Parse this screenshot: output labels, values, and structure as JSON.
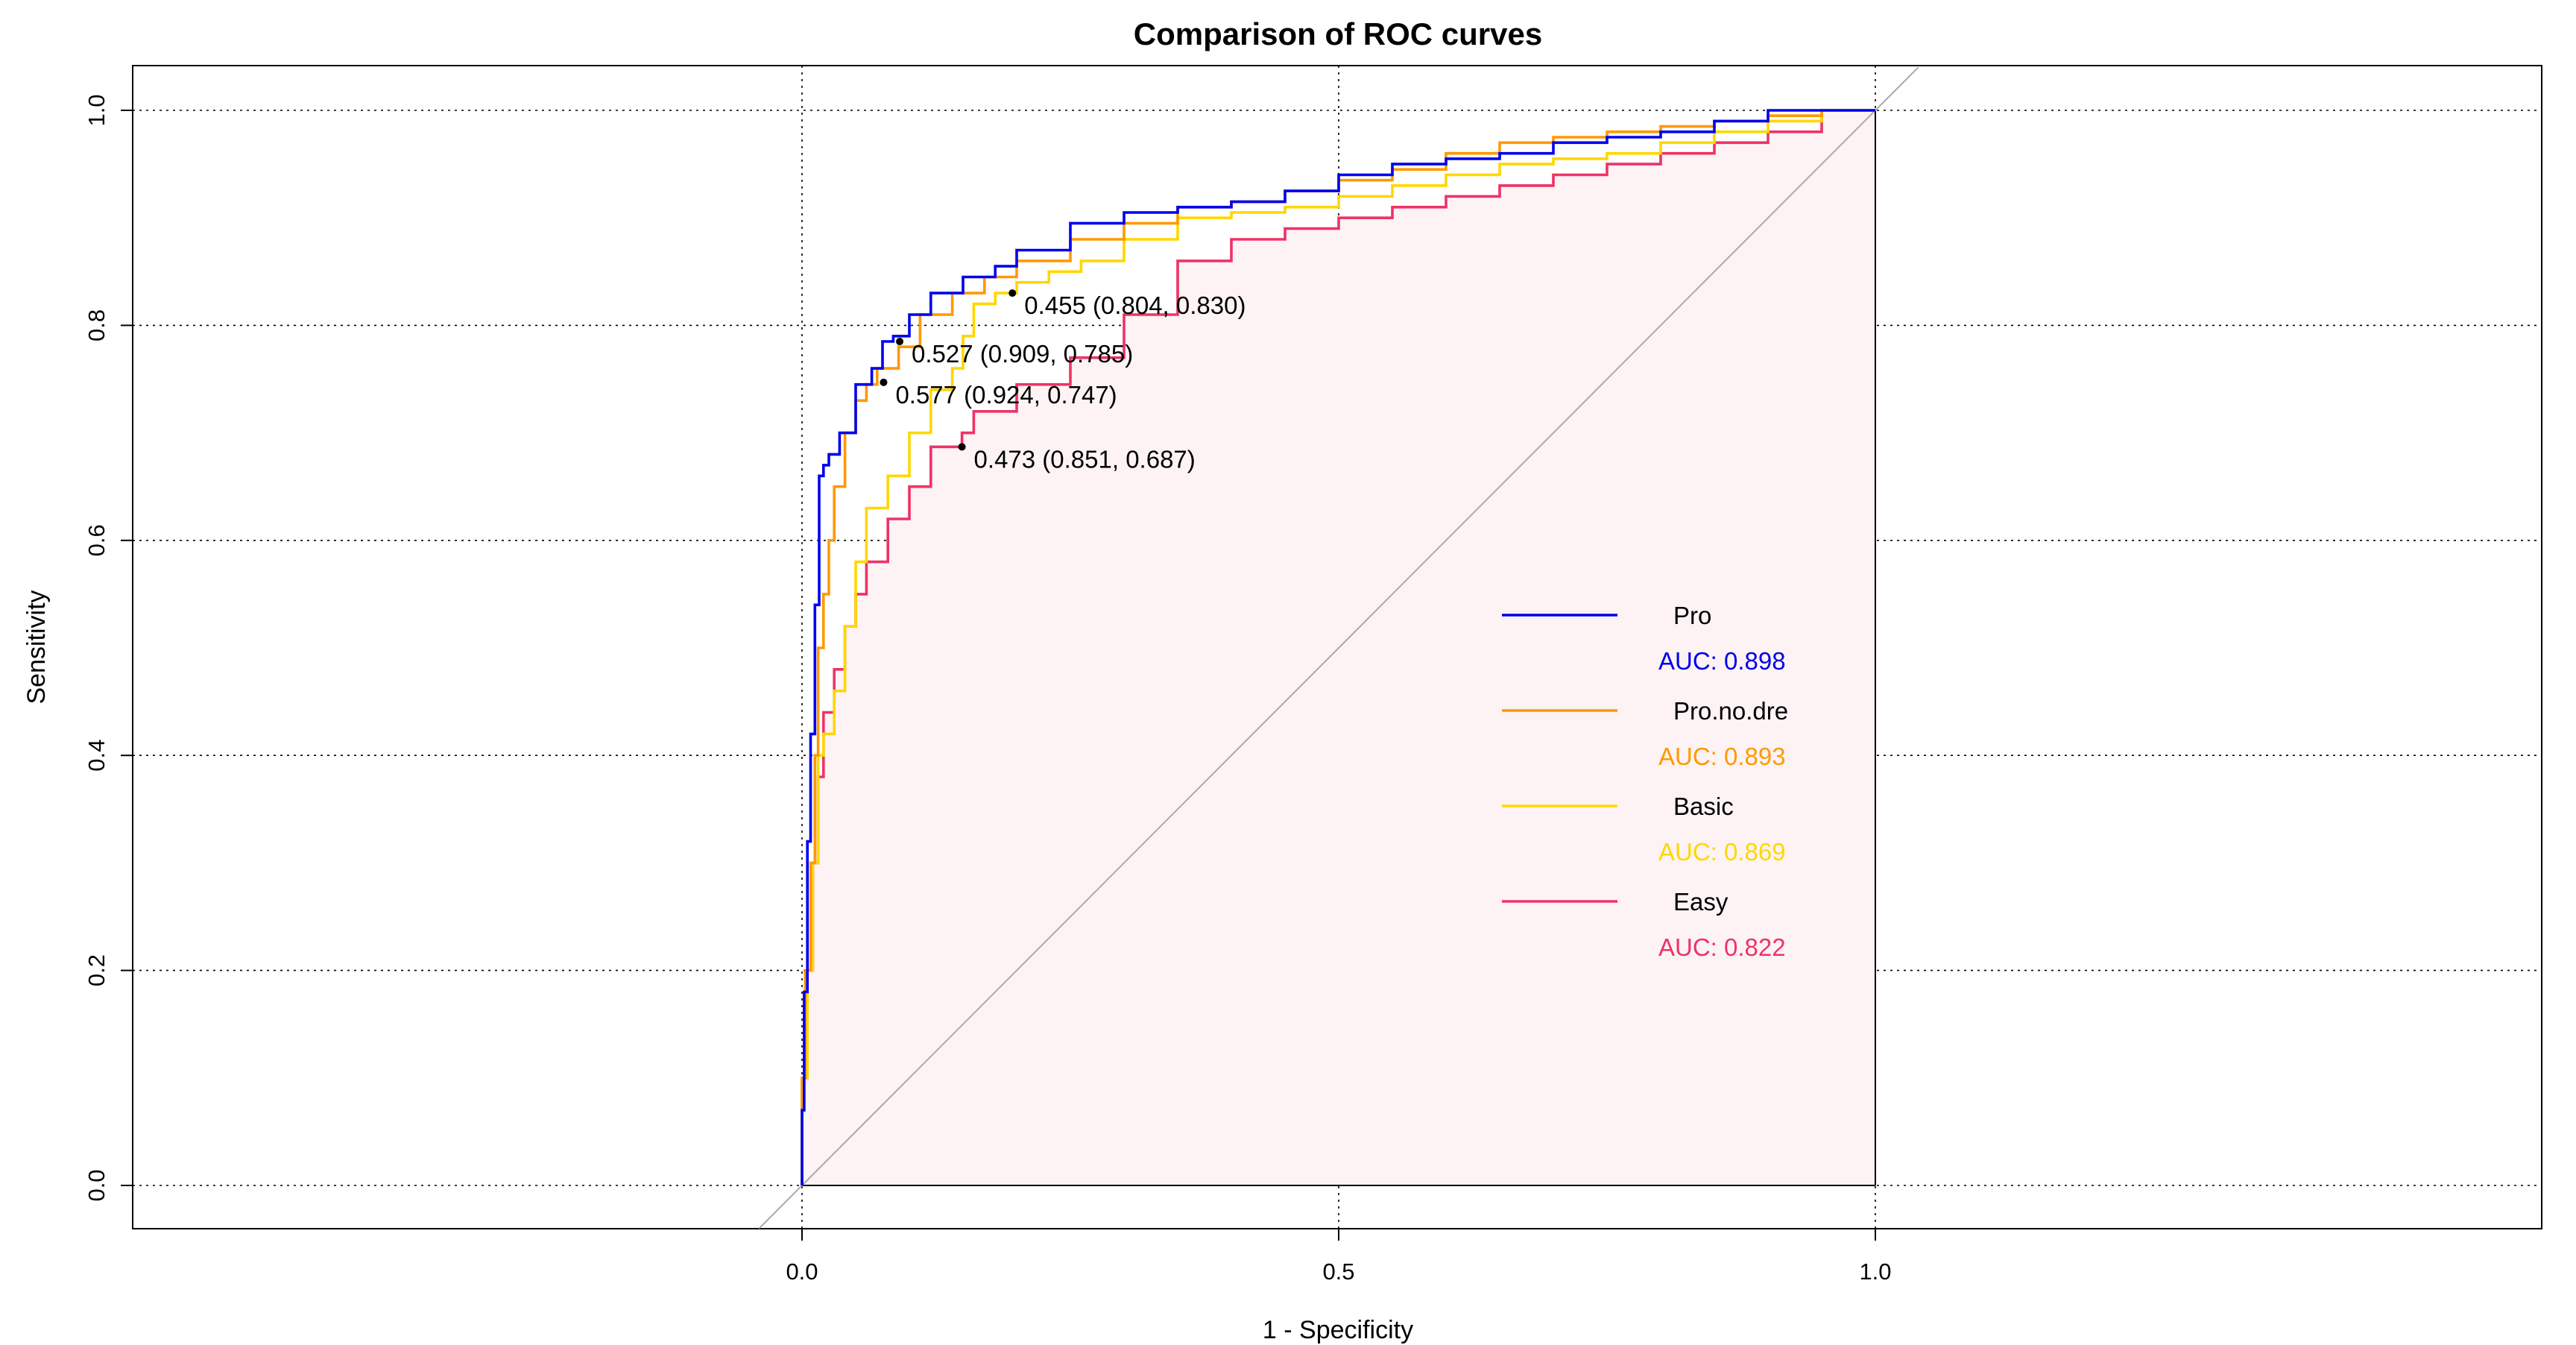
{
  "chart_data": {
    "type": "line",
    "title": "Comparison of ROC curves",
    "xlabel": "1 - Specificity",
    "ylabel": "Sensitivity",
    "x_ticks": [
      "0.0",
      "0.5",
      "1.0"
    ],
    "y_ticks": [
      "0.0",
      "0.2",
      "0.4",
      "0.6",
      "0.8",
      "1.0"
    ],
    "grid": true,
    "legend_position": "center-right",
    "shaded_region": "area under Easy curve",
    "shade_color": "#fdf3f4",
    "diagonal_color": "#aaaaaa",
    "series": [
      {
        "name": "Pro",
        "auc": "AUC: 0.898",
        "color": "#0000ee",
        "x": [
          0.0,
          0.002,
          0.005,
          0.008,
          0.012,
          0.016,
          0.02,
          0.025,
          0.035,
          0.05,
          0.065,
          0.075,
          0.085,
          0.1,
          0.12,
          0.15,
          0.18,
          0.2,
          0.25,
          0.3,
          0.35,
          0.4,
          0.45,
          0.5,
          0.55,
          0.6,
          0.65,
          0.7,
          0.75,
          0.8,
          0.85,
          0.9,
          0.95,
          1.0
        ],
        "y": [
          0.0,
          0.07,
          0.18,
          0.32,
          0.42,
          0.54,
          0.66,
          0.67,
          0.68,
          0.7,
          0.745,
          0.76,
          0.785,
          0.79,
          0.81,
          0.83,
          0.845,
          0.855,
          0.87,
          0.895,
          0.905,
          0.91,
          0.915,
          0.925,
          0.94,
          0.95,
          0.955,
          0.96,
          0.97,
          0.975,
          0.98,
          0.99,
          1.0,
          1.0
        ]
      },
      {
        "name": "Pro.no.dre",
        "auc": "AUC: 0.893",
        "color": "#ff9900",
        "x": [
          0.0,
          0.003,
          0.008,
          0.012,
          0.015,
          0.02,
          0.025,
          0.03,
          0.04,
          0.05,
          0.06,
          0.07,
          0.09,
          0.11,
          0.14,
          0.17,
          0.2,
          0.25,
          0.3,
          0.35,
          0.4,
          0.45,
          0.5,
          0.55,
          0.6,
          0.65,
          0.7,
          0.75,
          0.8,
          0.85,
          0.9,
          0.95,
          1.0
        ],
        "y": [
          0.0,
          0.1,
          0.2,
          0.3,
          0.4,
          0.5,
          0.55,
          0.6,
          0.65,
          0.7,
          0.73,
          0.745,
          0.76,
          0.78,
          0.81,
          0.83,
          0.845,
          0.86,
          0.88,
          0.895,
          0.91,
          0.915,
          0.925,
          0.935,
          0.945,
          0.96,
          0.97,
          0.975,
          0.98,
          0.985,
          0.99,
          0.995,
          1.0
        ]
      },
      {
        "name": "Basic",
        "auc": "AUC: 0.869",
        "color": "#ffd700",
        "x": [
          0.0,
          0.005,
          0.01,
          0.015,
          0.02,
          0.03,
          0.04,
          0.05,
          0.06,
          0.08,
          0.1,
          0.12,
          0.14,
          0.15,
          0.16,
          0.18,
          0.2,
          0.23,
          0.26,
          0.3,
          0.35,
          0.4,
          0.45,
          0.5,
          0.55,
          0.6,
          0.65,
          0.7,
          0.75,
          0.8,
          0.85,
          0.9,
          0.95,
          1.0
        ],
        "y": [
          0.0,
          0.1,
          0.2,
          0.3,
          0.4,
          0.42,
          0.46,
          0.52,
          0.58,
          0.63,
          0.66,
          0.7,
          0.74,
          0.76,
          0.79,
          0.82,
          0.83,
          0.84,
          0.85,
          0.86,
          0.88,
          0.9,
          0.905,
          0.91,
          0.92,
          0.93,
          0.94,
          0.95,
          0.955,
          0.96,
          0.97,
          0.98,
          0.99,
          1.0
        ]
      },
      {
        "name": "Easy",
        "auc": "AUC: 0.822",
        "color": "#ee3366",
        "x": [
          0.0,
          0.005,
          0.01,
          0.015,
          0.02,
          0.03,
          0.04,
          0.05,
          0.06,
          0.08,
          0.1,
          0.12,
          0.149,
          0.16,
          0.2,
          0.25,
          0.3,
          0.35,
          0.4,
          0.45,
          0.5,
          0.55,
          0.6,
          0.65,
          0.7,
          0.75,
          0.8,
          0.85,
          0.9,
          0.95,
          1.0
        ],
        "y": [
          0.0,
          0.1,
          0.2,
          0.3,
          0.38,
          0.44,
          0.48,
          0.52,
          0.55,
          0.58,
          0.62,
          0.65,
          0.687,
          0.7,
          0.72,
          0.745,
          0.77,
          0.81,
          0.86,
          0.88,
          0.89,
          0.9,
          0.91,
          0.92,
          0.93,
          0.94,
          0.95,
          0.96,
          0.97,
          0.98,
          1.0
        ]
      }
    ],
    "annotations": [
      {
        "text": "0.455 (0.804, 0.830)",
        "x": 0.196,
        "y": 0.83
      },
      {
        "text": "0.527 (0.909, 0.785)",
        "x": 0.091,
        "y": 0.785
      },
      {
        "text": "0.577 (0.924, 0.747)",
        "x": 0.076,
        "y": 0.747
      },
      {
        "text": "0.473 (0.851, 0.687)",
        "x": 0.149,
        "y": 0.687
      }
    ]
  }
}
